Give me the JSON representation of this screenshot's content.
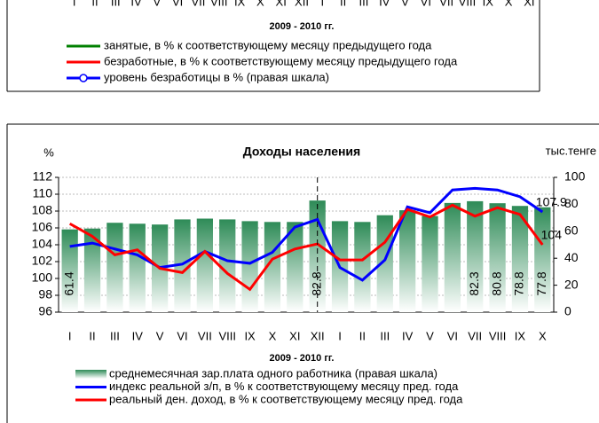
{
  "chart_data": [
    {
      "type": "legend",
      "categories": [
        "I",
        "II",
        "III",
        "IV",
        "V",
        "VI",
        "VII",
        "VIII",
        "IX",
        "X",
        "XI",
        "XII",
        "I",
        "II",
        "III",
        "IV",
        "V",
        "VI",
        "VII",
        "VIII",
        "IX",
        "X",
        "XI"
      ],
      "x_label": "2009 - 2010 гг.",
      "series": [
        {
          "name": "занятые, в % к соответствующему месяцу предыдущего года",
          "color": "#008000"
        },
        {
          "name": "безработные, в % к соответствующему месяцу предыдущего года",
          "color": "#ff0000"
        },
        {
          "name": "уровень безработицы в % (правая шкала)",
          "color": "#0000ff",
          "marker": "circle"
        }
      ]
    },
    {
      "type": "combo",
      "title": "Доходы населения",
      "y_label": "%",
      "y2_label": "тыс.тенге",
      "x_label": "2009 - 2010 гг.",
      "categories": [
        "I",
        "II",
        "III",
        "IV",
        "V",
        "VI",
        "VII",
        "VIII",
        "IX",
        "X",
        "XI",
        "XII",
        "I",
        "II",
        "III",
        "IV",
        "V",
        "VI",
        "VII",
        "VIII",
        "IX",
        "X"
      ],
      "ylim": [
        96,
        112
      ],
      "yticks": [
        96,
        98,
        100,
        102,
        104,
        106,
        108,
        110,
        112
      ],
      "y2lim": [
        0,
        100
      ],
      "y2ticks": [
        0,
        20,
        40,
        60,
        80,
        100
      ],
      "grid": true,
      "series": [
        {
          "name": "среднемесячная зар.плата одного работника (правая шкала)",
          "kind": "bar",
          "axis": "y2",
          "color": "#2e8b57",
          "values": [
            61.4,
            62,
            66.3,
            65.6,
            65,
            68.8,
            69.4,
            68.8,
            67.5,
            66.9,
            66.9,
            82.8,
            67.5,
            66.9,
            71.9,
            75.6,
            71.3,
            81,
            82.3,
            80.8,
            78.8,
            77.8
          ],
          "show_labels": [
            0,
            11,
            18,
            19,
            20,
            21
          ]
        },
        {
          "name": "индекс реальной з/п,  в % к соответствующему месяцу пред. года",
          "kind": "line",
          "color": "#0000ff",
          "values": [
            103.8,
            104.2,
            103.5,
            102.8,
            101.3,
            101.7,
            103.2,
            102.1,
            101.8,
            103.1,
            106.1,
            107,
            101.3,
            99.8,
            102.2,
            108.5,
            107.8,
            110.5,
            110.7,
            110.5,
            109.7,
            107.9
          ],
          "show_labels": [
            21
          ]
        },
        {
          "name": "реальный ден. доход, в % к соответствующему месяцу пред. года",
          "kind": "line",
          "color": "#ff0000",
          "values": [
            106.5,
            105,
            102.8,
            103.4,
            101.2,
            100.7,
            103.2,
            100.6,
            98.7,
            102.3,
            103.5,
            104.1,
            102.2,
            102.2,
            104.3,
            108.2,
            107.3,
            108.7,
            107.4,
            108.4,
            107.6,
            104
          ],
          "show_labels": [
            21
          ]
        }
      ]
    }
  ]
}
